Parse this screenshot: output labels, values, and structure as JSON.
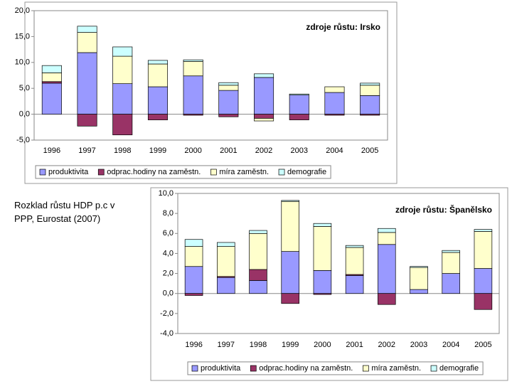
{
  "caption": "Rozklad růstu HDP p.c v PPP, Eurostat (2007)",
  "chart_data": [
    {
      "type": "bar",
      "stacked": true,
      "annotation": "zdroje růstu: Irsko",
      "categories": [
        "1996",
        "1997",
        "1998",
        "1999",
        "2000",
        "2001",
        "2002",
        "2003",
        "2004",
        "2005"
      ],
      "series": [
        {
          "name": "produktivita",
          "color": "#9999ff",
          "values": [
            6.0,
            11.9,
            5.9,
            5.3,
            7.4,
            4.6,
            7.1,
            3.7,
            4.2,
            3.6
          ]
        },
        {
          "name": "odprac.hodiny na zaměstn.",
          "color": "#993366",
          "values": [
            0.3,
            -2.3,
            -4.0,
            -1.1,
            -0.2,
            -0.5,
            -0.8,
            -1.1,
            -0.2,
            -0.2
          ]
        },
        {
          "name": "míra zaměstn.",
          "color": "#ffffcc",
          "values": [
            1.7,
            3.9,
            5.3,
            4.4,
            2.8,
            1.0,
            -0.5,
            0,
            1.1,
            2.0
          ]
        },
        {
          "name": "demografie",
          "color": "#ccffff",
          "values": [
            1.4,
            1.2,
            1.8,
            0.7,
            0.3,
            0.5,
            0.7,
            0.2,
            0,
            0.4
          ]
        }
      ],
      "ylim": [
        -5,
        20
      ],
      "yticks": [
        {
          "value": -5,
          "label": "-5,0"
        },
        {
          "value": 0,
          "label": "0,0"
        },
        {
          "value": 5,
          "label": "5,0"
        },
        {
          "value": 10,
          "label": "10,0"
        },
        {
          "value": 15,
          "label": "15,0"
        },
        {
          "value": 20,
          "label": "20,0"
        }
      ],
      "grid": false,
      "legend": "bottom"
    },
    {
      "type": "bar",
      "stacked": true,
      "annotation": "zdroje růstu: Španělsko",
      "categories": [
        "1996",
        "1997",
        "1998",
        "1999",
        "2000",
        "2001",
        "2002",
        "2003",
        "2004",
        "2005"
      ],
      "series": [
        {
          "name": "produktivita",
          "color": "#9999ff",
          "values": [
            2.7,
            1.6,
            1.3,
            4.2,
            2.3,
            1.8,
            4.9,
            0.4,
            2.0,
            2.5
          ]
        },
        {
          "name": "odprac.hodiny na zaměstn.",
          "color": "#993366",
          "values": [
            -0.2,
            0.1,
            1.1,
            -1.0,
            -0.1,
            0.1,
            -1.1,
            0,
            0,
            -1.6
          ]
        },
        {
          "name": "míra zaměstn.",
          "color": "#ffffcc",
          "values": [
            2.0,
            3.0,
            3.6,
            5.0,
            4.4,
            2.7,
            1.2,
            2.2,
            2.1,
            3.7
          ]
        },
        {
          "name": "demografie",
          "color": "#ccffff",
          "values": [
            0.7,
            0.4,
            0.3,
            0.1,
            0.3,
            0.2,
            0.4,
            0.1,
            0.2,
            0.2
          ]
        }
      ],
      "ylim": [
        -4,
        10
      ],
      "yticks": [
        {
          "value": -4,
          "label": "-4,0"
        },
        {
          "value": -2,
          "label": "-2,0"
        },
        {
          "value": 0,
          "label": "0,0"
        },
        {
          "value": 2,
          "label": "2,0"
        },
        {
          "value": 4,
          "label": "4,0"
        },
        {
          "value": 6,
          "label": "6,0"
        },
        {
          "value": 8,
          "label": "8,0"
        },
        {
          "value": 10,
          "label": "10,0"
        }
      ],
      "grid": false,
      "legend": "bottom"
    }
  ]
}
